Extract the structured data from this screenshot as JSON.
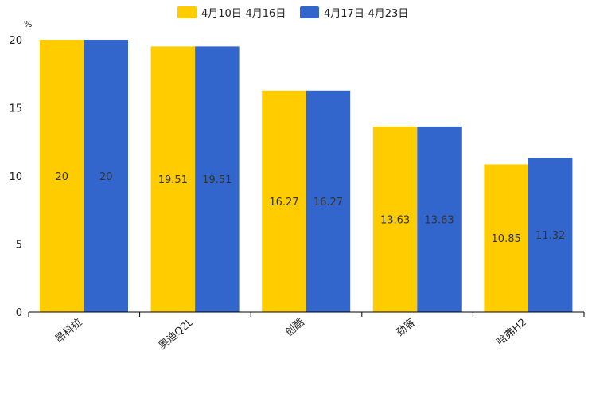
{
  "chart_data": {
    "type": "bar",
    "unit_label": "%",
    "categories": [
      "昂科拉",
      "奥迪Q2L",
      "创酷",
      "劲客",
      "哈弗H2"
    ],
    "series": [
      {
        "name": "4月10日-4月16日",
        "color": "#FFCC00",
        "values": [
          20,
          19.51,
          16.27,
          13.63,
          10.85
        ],
        "labels": [
          "20",
          "19.51",
          "16.27",
          "13.63",
          "10.85"
        ]
      },
      {
        "name": "4月17日-4月23日",
        "color": "#3366CC",
        "values": [
          20,
          19.51,
          16.27,
          13.63,
          11.32
        ],
        "labels": [
          "20",
          "19.51",
          "16.27",
          "13.63",
          "11.32"
        ]
      }
    ],
    "ylim": [
      0,
      20
    ],
    "yticks": [
      0,
      5,
      10,
      15,
      20
    ],
    "ytick_labels": [
      "0",
      "5",
      "10",
      "15",
      "20"
    ],
    "legend_position": "top-center",
    "grid": false
  }
}
